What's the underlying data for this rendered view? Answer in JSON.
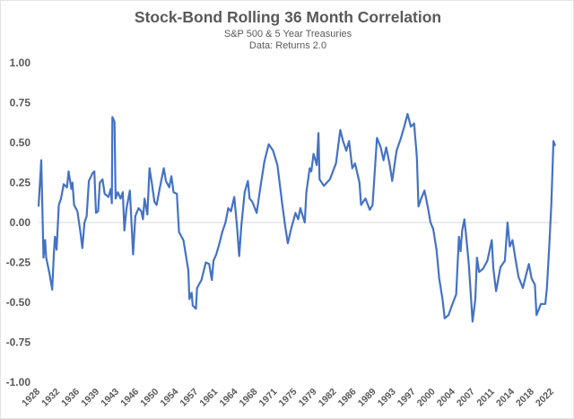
{
  "chart_data": {
    "type": "line",
    "title": "Stock-Bond Rolling 36 Month Correlation",
    "subtitle": "S&P 500 & 5 Year Treasuries",
    "source": "Data: Returns 2.0",
    "xlabel": "",
    "ylabel": "",
    "xlim": [
      1928,
      2023
    ],
    "ylim": [
      -1.0,
      1.0
    ],
    "grid": "zero line only",
    "legend": "none",
    "y_ticks": [
      "1.00",
      "0.75",
      "0.50",
      "0.25",
      "0.00",
      "-0.25",
      "-0.50",
      "-0.75",
      "-1.00"
    ],
    "y_tick_values": [
      1,
      0.75,
      0.5,
      0.25,
      0,
      -0.25,
      -0.5,
      -0.75,
      -1
    ],
    "x_ticks": [
      "1928",
      "1932",
      "1936",
      "1939",
      "1943",
      "1946",
      "1950",
      "1954",
      "1957",
      "1961",
      "1964",
      "1968",
      "1971",
      "1975",
      "1979",
      "1982",
      "1986",
      "1989",
      "1993",
      "1997",
      "2000",
      "2004",
      "2007",
      "2011",
      "2014",
      "2018",
      "2022"
    ],
    "line_color": "#4472c4",
    "series": [
      {
        "x": [
          1928.0,
          1928.5,
          1928.9,
          1929.2,
          1929.4,
          1930.0,
          1930.5,
          1930.8,
          1931.0,
          1931.3,
          1931.7,
          1932.1,
          1932.6,
          1933.2,
          1933.5,
          1934.0,
          1934.2,
          1934.5,
          1935.1,
          1935.7,
          1936.0,
          1936.4,
          1936.8,
          1937.2,
          1937.9,
          1938.2,
          1938.5,
          1938.9,
          1939.2,
          1939.7,
          1940.1,
          1940.8,
          1941.2,
          1941.4,
          1941.5,
          1941.9,
          1942.1,
          1942.5,
          1943.0,
          1943.4,
          1943.7,
          1944.1,
          1944.7,
          1945.3,
          1945.7,
          1946.3,
          1946.8,
          1947.1,
          1947.4,
          1947.9,
          1948.3,
          1948.7,
          1949.2,
          1949.6,
          1950.2,
          1950.9,
          1951.3,
          1951.9,
          1952.3,
          1952.7,
          1953.3,
          1953.7,
          1954.5,
          1955.4,
          1955.6,
          1956.0,
          1956.2,
          1956.8,
          1957.0,
          1957.8,
          1958.6,
          1959.2,
          1959.7,
          1960.0,
          1960.5,
          1961.1,
          1961.6,
          1962.2,
          1962.7,
          1963.2,
          1963.8,
          1964.3,
          1964.7,
          1965.1,
          1965.7,
          1966.3,
          1966.6,
          1967.1,
          1967.9,
          1968.5,
          1969.3,
          1970.1,
          1970.9,
          1971.7,
          1972.6,
          1973.1,
          1973.6,
          1974.2,
          1975.0,
          1975.5,
          1975.9,
          1976.7,
          1977.0,
          1977.6,
          1977.9,
          1978.3,
          1978.9,
          1979.2,
          1979.4,
          1980.2,
          1981.3,
          1982.4,
          1983.2,
          1983.7,
          1984.3,
          1984.8,
          1985.4,
          1985.9,
          1986.7,
          1987.0,
          1987.8,
          1988.6,
          1989.1,
          1989.9,
          1990.6,
          1991.1,
          1991.6,
          1992.2,
          1992.7,
          1993.5,
          1994.3,
          1994.9,
          1995.5,
          1996.1,
          1996.7,
          1997.2,
          1997.5,
          1998.0,
          1998.6,
          1999.2,
          1999.7,
          2000.2,
          2000.8,
          2001.3,
          2001.9,
          2002.3,
          2003.0,
          2003.5,
          2004.4,
          2004.9,
          2005.2,
          2005.5,
          2005.9,
          2006.3,
          2006.7,
          2007.4,
          2007.9,
          2008.2,
          2008.6,
          2009.3,
          2010.1,
          2010.9,
          2011.2,
          2011.7,
          2012.5,
          2013.3,
          2013.8,
          2014.2,
          2014.7,
          2015.2,
          2015.8,
          2016.6,
          2017.1,
          2017.7,
          2018.2,
          2018.8,
          2019.1,
          2019.9,
          2020.7,
          2021.0,
          2021.4,
          2021.8,
          2022.2,
          2022.5
        ],
        "values": [
          0.1,
          0.39,
          -0.22,
          -0.11,
          -0.22,
          -0.32,
          -0.42,
          -0.19,
          -0.09,
          -0.17,
          0.11,
          0.15,
          0.24,
          0.22,
          0.32,
          0.21,
          0.25,
          0.11,
          0.07,
          -0.07,
          -0.16,
          0.0,
          0.04,
          0.26,
          0.31,
          0.32,
          0.06,
          0.07,
          0.25,
          0.27,
          0.18,
          0.16,
          0.21,
          0.12,
          0.66,
          0.63,
          0.15,
          0.19,
          0.15,
          0.19,
          -0.05,
          0.09,
          0.2,
          -0.2,
          0.04,
          0.09,
          0.07,
          0.02,
          0.15,
          0.05,
          0.34,
          0.25,
          0.13,
          0.11,
          0.22,
          0.34,
          0.26,
          0.22,
          0.29,
          0.19,
          0.18,
          -0.06,
          -0.11,
          -0.3,
          -0.48,
          -0.44,
          -0.52,
          -0.54,
          -0.41,
          -0.36,
          -0.25,
          -0.26,
          -0.36,
          -0.24,
          -0.2,
          -0.13,
          -0.06,
          0.0,
          0.09,
          0.07,
          0.16,
          -0.02,
          -0.21,
          -0.02,
          0.19,
          0.26,
          0.15,
          0.13,
          0.06,
          0.2,
          0.38,
          0.49,
          0.45,
          0.36,
          0.11,
          -0.02,
          -0.13,
          -0.04,
          0.06,
          0.02,
          0.09,
          0.0,
          0.19,
          0.34,
          0.32,
          0.43,
          0.36,
          0.56,
          0.27,
          0.23,
          0.27,
          0.37,
          0.58,
          0.51,
          0.45,
          0.51,
          0.34,
          0.37,
          0.25,
          0.11,
          0.15,
          0.08,
          0.11,
          0.53,
          0.47,
          0.39,
          0.47,
          0.37,
          0.26,
          0.45,
          0.53,
          0.6,
          0.68,
          0.6,
          0.62,
          0.41,
          0.1,
          0.15,
          0.2,
          0.1,
          0.0,
          -0.04,
          -0.17,
          -0.35,
          -0.48,
          -0.6,
          -0.58,
          -0.53,
          -0.45,
          -0.09,
          -0.18,
          -0.05,
          0.02,
          -0.11,
          -0.26,
          -0.62,
          -0.48,
          -0.22,
          -0.31,
          -0.29,
          -0.24,
          -0.11,
          -0.29,
          -0.43,
          -0.28,
          -0.24,
          0.0,
          -0.15,
          -0.11,
          -0.22,
          -0.34,
          -0.41,
          -0.34,
          -0.26,
          -0.35,
          -0.39,
          -0.58,
          -0.51,
          -0.51,
          -0.41,
          -0.17,
          0.11,
          0.51,
          0.48
        ]
      }
    ]
  }
}
